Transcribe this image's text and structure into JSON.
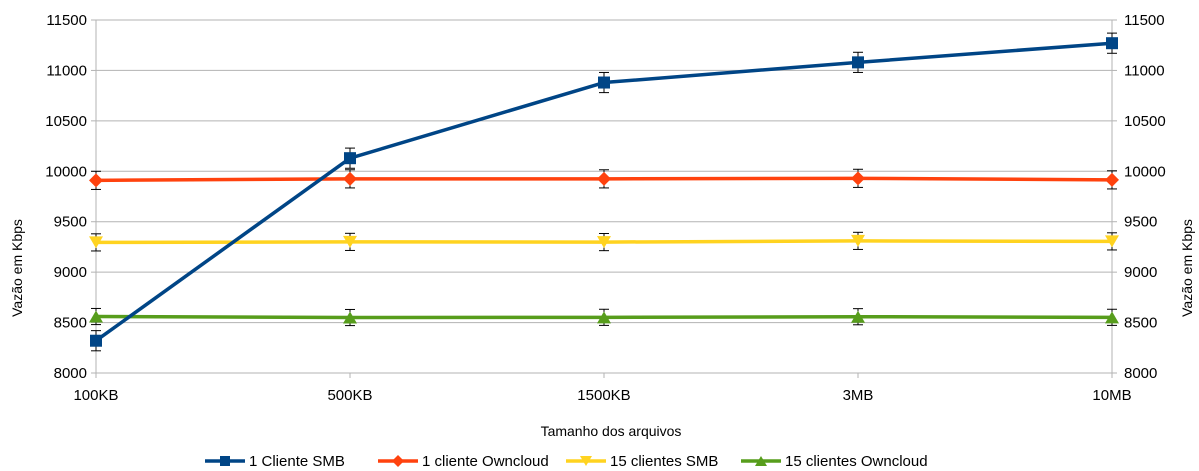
{
  "chart_data": {
    "type": "line",
    "title": "",
    "xlabel": "Tamanho dos arquivos",
    "ylabel": "Vazão em Kbps",
    "ylabel_right": "Vazão em Kbps",
    "categories": [
      "100KB",
      "500KB",
      "1500KB",
      "3MB",
      "10MB"
    ],
    "ylim": [
      8000,
      11500
    ],
    "yticks": [
      8000,
      8500,
      9000,
      9500,
      10000,
      10500,
      11000,
      11500
    ],
    "ytick_labels": [
      "8000",
      "8500",
      "9000",
      "9500",
      "10000",
      "10500",
      "11000",
      "11500"
    ],
    "grid": true,
    "legend_position": "bottom",
    "series": [
      {
        "name": "1 Cliente SMB",
        "color": "#004586",
        "marker": "square",
        "values": [
          8320,
          10130,
          10880,
          11080,
          11270
        ],
        "errors": [
          100,
          100,
          100,
          100,
          100
        ]
      },
      {
        "name": "1 cliente Owncloud",
        "color": "#ff420e",
        "marker": "diamond",
        "values": [
          9910,
          9925,
          9925,
          9930,
          9915
        ],
        "errors": [
          90,
          90,
          90,
          90,
          90
        ]
      },
      {
        "name": "15 clientes SMB",
        "color": "#ffd320",
        "marker": "triangle-down",
        "values": [
          9295,
          9300,
          9298,
          9310,
          9305
        ],
        "errors": [
          85,
          85,
          85,
          85,
          85
        ]
      },
      {
        "name": "15 clientes Owncloud",
        "color": "#579d1c",
        "marker": "triangle-up",
        "values": [
          8560,
          8550,
          8552,
          8558,
          8552
        ],
        "errors": [
          80,
          80,
          80,
          80,
          80
        ]
      }
    ]
  }
}
